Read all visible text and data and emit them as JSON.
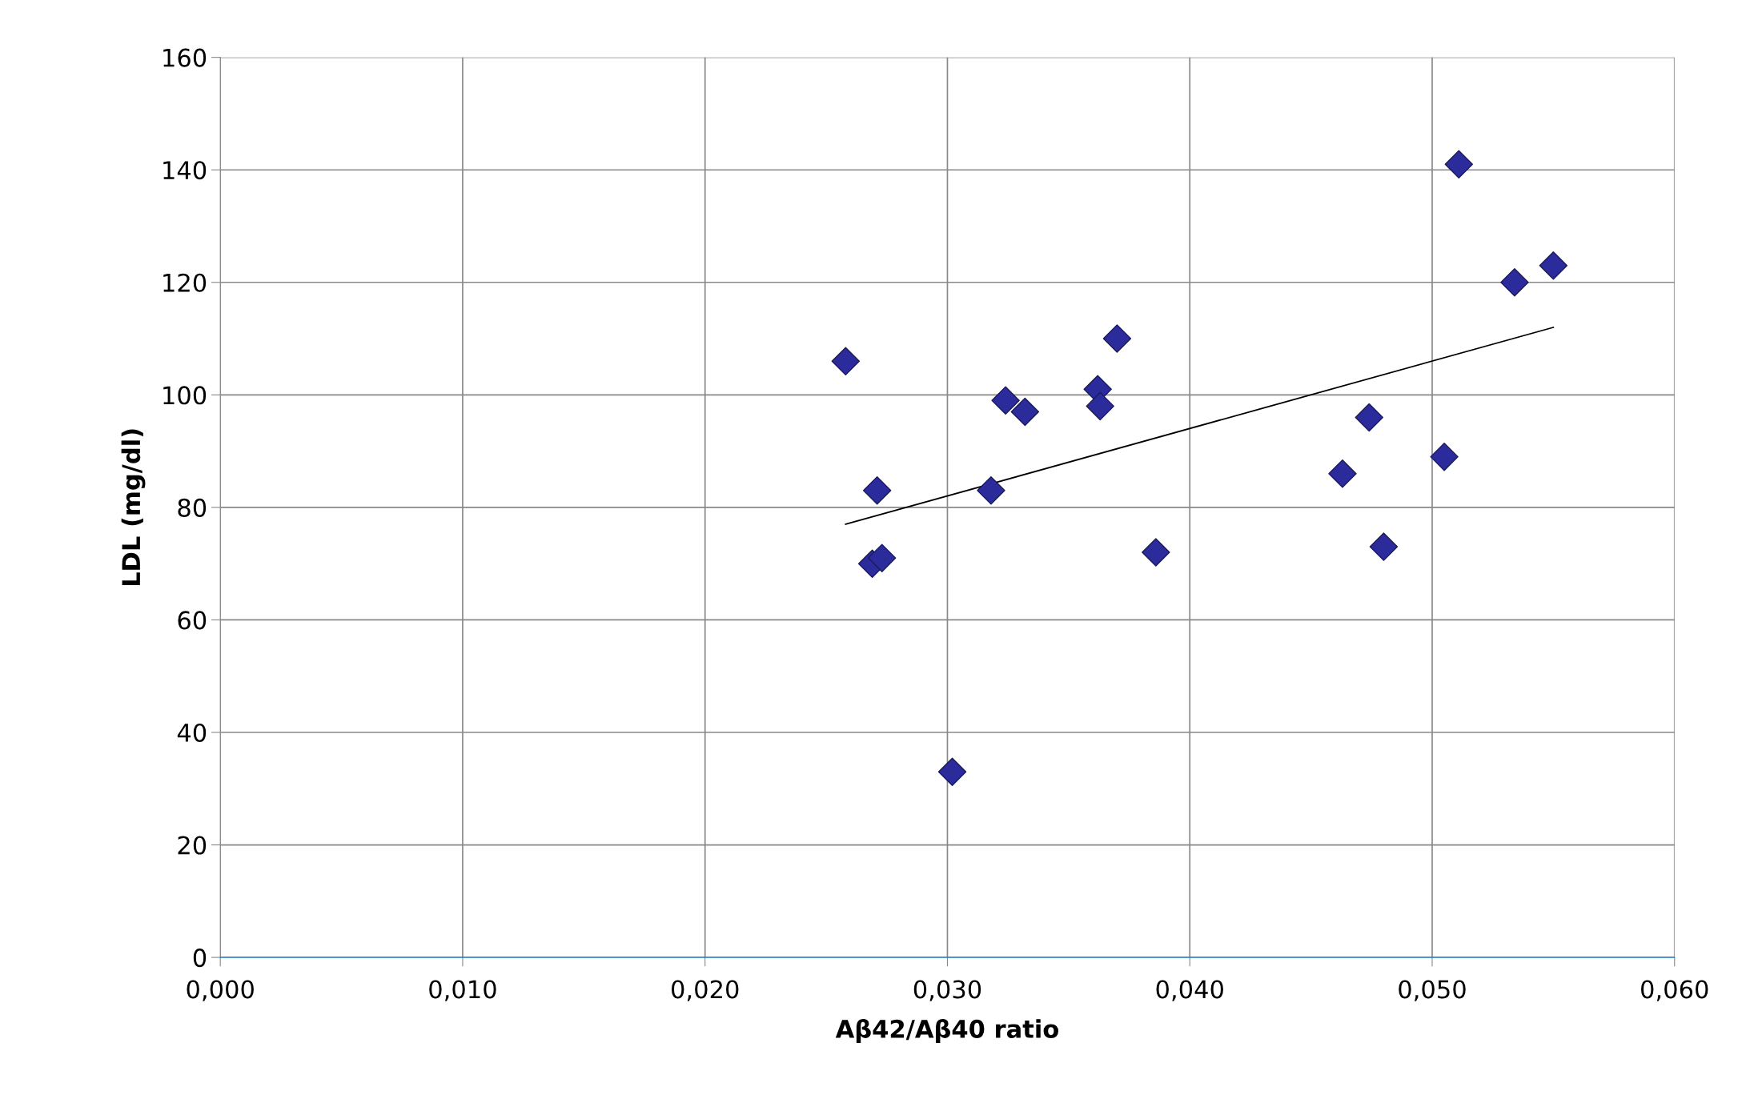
{
  "chart_data": {
    "type": "scatter",
    "xlabel": "Aβ42/Aβ40 ratio",
    "ylabel": "LDL (mg/dl)",
    "xlim": [
      0,
      0.06
    ],
    "ylim": [
      0,
      160
    ],
    "xticks": [
      {
        "value": 0,
        "label": "0,000"
      },
      {
        "value": 0.01,
        "label": "0,010"
      },
      {
        "value": 0.02,
        "label": "0,020"
      },
      {
        "value": 0.03,
        "label": "0,030"
      },
      {
        "value": 0.04,
        "label": "0,040"
      },
      {
        "value": 0.05,
        "label": "0,050"
      },
      {
        "value": 0.06,
        "label": "0,060"
      }
    ],
    "yticks": [
      0,
      20,
      40,
      60,
      80,
      100,
      120,
      140,
      160
    ],
    "grid": true,
    "marker": "diamond",
    "series": [
      {
        "color": "#2b2b9c",
        "x": [
          0.0258,
          0.0271,
          0.0269,
          0.0273,
          0.0302,
          0.0318,
          0.0324,
          0.0332,
          0.0362,
          0.0363,
          0.037,
          0.0386,
          0.0463,
          0.0474,
          0.048,
          0.0505,
          0.0511,
          0.0534,
          0.055
        ],
        "values": [
          106,
          83,
          70,
          71,
          33,
          83,
          99,
          97,
          101,
          98,
          110,
          72,
          86,
          96,
          73,
          89,
          141,
          120,
          123
        ]
      },
      {
        "type": "line",
        "color": "#000000",
        "marker": "none",
        "line_style": "solid",
        "x": [
          0.0258,
          0.055
        ],
        "values": [
          77,
          112
        ]
      }
    ]
  }
}
